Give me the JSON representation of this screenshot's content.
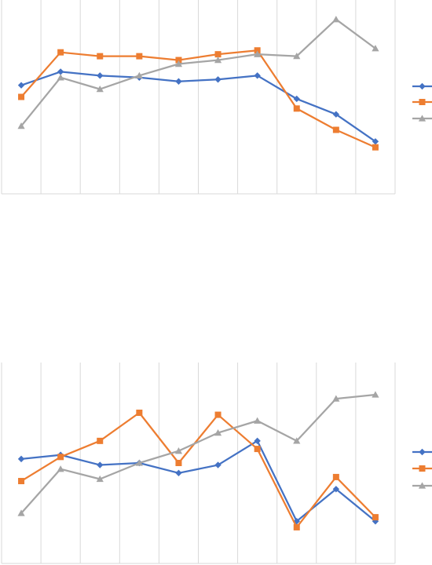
{
  "chart_data": [
    {
      "type": "line",
      "title": "",
      "xlabel": "",
      "ylabel": "",
      "categories": [
        "",
        "",
        "",
        "",
        "",
        "",
        "",
        "",
        "",
        ""
      ],
      "ylim": [
        0,
        100
      ],
      "grid": "vertical",
      "legend_position": "right",
      "series": [
        {
          "key": "s1",
          "color": "#4472C4",
          "marker": "diamond",
          "values": [
            56,
            63,
            61,
            60,
            58,
            59,
            61,
            49,
            41,
            27
          ]
        },
        {
          "key": "s2",
          "color": "#ED7D31",
          "marker": "square",
          "values": [
            50,
            73,
            71,
            71,
            69,
            72,
            74,
            44,
            33,
            24
          ]
        },
        {
          "key": "s3",
          "color": "#A5A5A5",
          "marker": "triangle",
          "values": [
            35,
            60,
            54,
            61,
            67,
            69,
            72,
            71,
            90,
            75
          ]
        }
      ]
    },
    {
      "type": "line",
      "title": "",
      "xlabel": "",
      "ylabel": "",
      "categories": [
        "",
        "",
        "",
        "",
        "",
        "",
        "",
        "",
        "",
        ""
      ],
      "ylim": [
        0,
        100
      ],
      "grid": "vertical",
      "legend_position": "right",
      "series": [
        {
          "key": "s1",
          "color": "#4472C4",
          "marker": "diamond",
          "values": [
            52,
            54,
            49,
            50,
            45,
            49,
            61,
            21,
            37,
            21
          ]
        },
        {
          "key": "s2",
          "color": "#ED7D31",
          "marker": "square",
          "values": [
            41,
            53,
            61,
            75,
            50,
            74,
            57,
            18,
            43,
            23
          ]
        },
        {
          "key": "s3",
          "color": "#A5A5A5",
          "marker": "triangle",
          "values": [
            25,
            47,
            42,
            50,
            56,
            65,
            71,
            61,
            82,
            84
          ]
        }
      ]
    }
  ]
}
